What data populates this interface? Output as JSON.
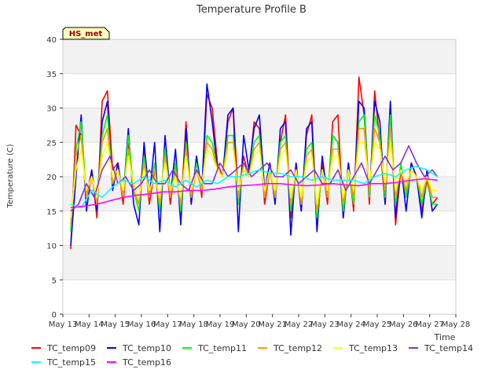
{
  "chart_data": {
    "type": "line",
    "title": "Temperature Profile B",
    "xlabel": "Time",
    "ylabel": "Temperature (C)",
    "xlim": [
      "May 13",
      "May 28"
    ],
    "ylim": [
      0,
      40
    ],
    "yticks": [
      0,
      5,
      10,
      15,
      20,
      25,
      30,
      35,
      40
    ],
    "xticks": [
      "May 13",
      "May 14",
      "May 15",
      "May 16",
      "May 17",
      "May 18",
      "May 19",
      "May 20",
      "May 21",
      "May 22",
      "May 23",
      "May 24",
      "May 25",
      "May 26",
      "May 27",
      "May 28"
    ],
    "grid": "horizontal bands",
    "legend_position": "bottom",
    "annotation": "HS_met",
    "series": [
      {
        "name": "TC_temp09",
        "color": "#ff0000",
        "x": [
          13.3,
          13.5,
          13.7,
          13.9,
          14.1,
          14.3,
          14.5,
          14.7,
          14.9,
          15.1,
          15.3,
          15.5,
          15.7,
          15.9,
          16.1,
          16.3,
          16.5,
          16.7,
          16.9,
          17.1,
          17.3,
          17.5,
          17.7,
          17.9,
          18.1,
          18.3,
          18.5,
          18.7,
          18.9,
          19.1,
          19.3,
          19.5,
          19.7,
          19.9,
          20.1,
          20.3,
          20.5,
          20.7,
          20.9,
          21.1,
          21.3,
          21.5,
          21.7,
          21.9,
          22.1,
          22.3,
          22.5,
          22.7,
          22.9,
          23.1,
          23.3,
          23.5,
          23.7,
          23.9,
          24.1,
          24.3,
          24.5,
          24.7,
          24.9,
          25.1,
          25.3,
          25.5,
          25.7,
          25.9,
          26.1,
          26.3,
          26.5,
          26.7,
          26.9,
          27.1,
          27.3
        ],
        "y": [
          9.5,
          27.5,
          26,
          17,
          21,
          14,
          31,
          32.5,
          21,
          22,
          16,
          25,
          18,
          16,
          24,
          16,
          21,
          15,
          24,
          16,
          22,
          15,
          28,
          16,
          23,
          17,
          32,
          30,
          22,
          20,
          28,
          30,
          17,
          23,
          20,
          28,
          27,
          16,
          21,
          17,
          25,
          29,
          14,
          22,
          15,
          26,
          29,
          13,
          22,
          16,
          28,
          29,
          14,
          22,
          15,
          34.5,
          29,
          16,
          32.5,
          25,
          16,
          30,
          13,
          21,
          17,
          22,
          20,
          15,
          19.5,
          16,
          17
        ]
      },
      {
        "name": "TC_temp10",
        "color": "#0000ff",
        "x": [
          13.3,
          13.5,
          13.7,
          13.9,
          14.1,
          14.3,
          14.5,
          14.7,
          14.9,
          15.1,
          15.3,
          15.5,
          15.7,
          15.9,
          16.1,
          16.3,
          16.5,
          16.7,
          16.9,
          17.1,
          17.3,
          17.5,
          17.7,
          17.9,
          18.1,
          18.3,
          18.5,
          18.7,
          18.9,
          19.1,
          19.3,
          19.5,
          19.7,
          19.9,
          20.1,
          20.3,
          20.5,
          20.7,
          20.9,
          21.1,
          21.3,
          21.5,
          21.7,
          21.9,
          22.1,
          22.3,
          22.5,
          22.7,
          22.9,
          23.1,
          23.3,
          23.5,
          23.7,
          23.9,
          24.1,
          24.3,
          24.5,
          24.7,
          24.9,
          25.1,
          25.3,
          25.5,
          25.7,
          25.9,
          26.1,
          26.3,
          26.5,
          26.7,
          26.9,
          27.1,
          27.3
        ],
        "y": [
          10,
          20,
          29,
          15,
          21,
          15,
          28,
          31,
          18,
          22,
          17,
          27,
          16,
          13,
          25,
          17,
          25,
          12,
          26,
          17,
          24,
          13,
          27,
          16,
          23,
          18,
          33.5,
          28,
          21,
          20,
          29,
          30,
          12,
          26,
          21,
          27,
          29,
          18,
          22,
          16,
          27,
          28,
          11.5,
          22,
          15,
          27,
          28,
          12,
          23,
          17,
          26,
          25,
          14,
          22,
          16,
          31,
          30,
          17,
          31,
          28,
          16,
          31,
          14,
          22,
          15,
          22,
          20,
          14,
          21,
          15,
          16
        ]
      },
      {
        "name": "TC_temp11",
        "color": "#00ff00",
        "x": [
          13.3,
          13.5,
          13.7,
          13.9,
          14.1,
          14.3,
          14.5,
          14.7,
          14.9,
          15.1,
          15.3,
          15.5,
          15.7,
          15.9,
          16.1,
          16.3,
          16.5,
          16.7,
          16.9,
          17.1,
          17.3,
          17.5,
          17.7,
          17.9,
          18.1,
          18.3,
          18.5,
          18.7,
          18.9,
          19.1,
          19.3,
          19.5,
          19.7,
          19.9,
          20.1,
          20.3,
          20.5,
          20.7,
          20.9,
          21.1,
          21.3,
          21.5,
          21.7,
          21.9,
          22.1,
          22.3,
          22.5,
          22.7,
          22.9,
          23.1,
          23.3,
          23.5,
          23.7,
          23.9,
          24.1,
          24.3,
          24.5,
          24.7,
          24.9,
          25.1,
          25.3,
          25.5,
          25.7,
          25.9,
          26.1,
          26.3,
          26.5,
          26.7,
          26.9,
          27.1,
          27.3
        ],
        "y": [
          12,
          24,
          28,
          17,
          20,
          16,
          26,
          29,
          19,
          21,
          17,
          26,
          18,
          15,
          23,
          17,
          22,
          15,
          24,
          17,
          22,
          15,
          25,
          17,
          22,
          18,
          26,
          25,
          21,
          20,
          26,
          26,
          16,
          22,
          20,
          25,
          26,
          17,
          21,
          17,
          25,
          26,
          15,
          21,
          16,
          24,
          25,
          14,
          21,
          17,
          26,
          25,
          15,
          21,
          16,
          28,
          29,
          17,
          29,
          26,
          17,
          29,
          16,
          22,
          17,
          21,
          20,
          16,
          20,
          16,
          16
        ]
      },
      {
        "name": "TC_temp12",
        "color": "#ff9900",
        "x": [
          13.3,
          13.5,
          13.7,
          13.9,
          14.1,
          14.3,
          14.5,
          14.7,
          14.9,
          15.1,
          15.3,
          15.5,
          15.7,
          15.9,
          16.1,
          16.3,
          16.5,
          16.7,
          16.9,
          17.1,
          17.3,
          17.5,
          17.7,
          17.9,
          18.1,
          18.3,
          18.5,
          18.7,
          18.9,
          19.1,
          19.3,
          19.5,
          19.7,
          19.9,
          20.1,
          20.3,
          20.5,
          20.7,
          20.9,
          21.1,
          21.3,
          21.5,
          21.7,
          21.9,
          22.1,
          22.3,
          22.5,
          22.7,
          22.9,
          23.1,
          23.3,
          23.5,
          23.7,
          23.9,
          24.1,
          24.3,
          24.5,
          24.7,
          24.9,
          25.1,
          25.3,
          25.5,
          25.7,
          25.9,
          26.1,
          26.3,
          26.5,
          26.7,
          26.9,
          27.1,
          27.3
        ],
        "y": [
          13,
          23,
          26,
          17,
          20,
          16,
          25,
          27,
          19,
          21,
          17,
          24,
          18,
          16,
          22,
          17,
          21,
          16,
          23,
          17,
          21,
          16,
          24,
          17,
          21,
          18,
          25,
          24,
          21,
          20,
          25,
          25,
          17,
          22,
          20,
          24,
          25,
          17,
          21,
          17,
          24,
          25,
          16,
          21,
          16,
          23,
          24,
          15,
          21,
          17,
          24,
          24,
          16,
          21,
          17,
          27,
          27,
          18,
          27,
          25,
          18,
          27,
          17,
          21,
          18,
          21,
          20,
          17,
          20,
          17,
          17
        ]
      },
      {
        "name": "TC_temp13",
        "color": "#ffff00",
        "x": [
          13.3,
          13.5,
          13.7,
          13.9,
          14.1,
          14.3,
          14.5,
          14.7,
          14.9,
          15.1,
          15.3,
          15.5,
          15.7,
          15.9,
          16.1,
          16.3,
          16.5,
          16.7,
          16.9,
          17.1,
          17.3,
          17.5,
          17.7,
          17.9,
          18.1,
          18.3,
          18.5,
          18.7,
          18.9,
          19.1,
          19.3,
          19.5,
          19.7,
          19.9,
          20.1,
          20.3,
          20.5,
          20.7,
          20.9,
          21.1,
          21.3,
          21.5,
          21.7,
          21.9,
          22.1,
          22.3,
          22.5,
          22.7,
          22.9,
          23.1,
          23.3,
          23.5,
          23.7,
          23.9,
          24.1,
          24.3,
          24.5,
          24.7,
          24.9,
          25.1,
          25.3,
          25.5,
          25.7,
          25.9,
          26.1,
          26.3,
          26.5,
          26.7,
          26.9,
          27.1,
          27.3
        ],
        "y": [
          14,
          21,
          24,
          18,
          20,
          17,
          23,
          25,
          20,
          21,
          18,
          23,
          19,
          17,
          21,
          18,
          20,
          17,
          22,
          18,
          20,
          17,
          23,
          18,
          21,
          19,
          24,
          23,
          21,
          20,
          24,
          24,
          18,
          21,
          20,
          23,
          24,
          18,
          21,
          18,
          23,
          24,
          17,
          21,
          17,
          22,
          23,
          16,
          21,
          18,
          23,
          23,
          17,
          21,
          18,
          25,
          25,
          19,
          25,
          24,
          19,
          25,
          18,
          21,
          19,
          21,
          20,
          18,
          20,
          18,
          18
        ]
      },
      {
        "name": "TC_temp14",
        "color": "#8a2be2",
        "x": [
          13.3,
          13.6,
          13.9,
          14.2,
          14.5,
          14.8,
          15.1,
          15.4,
          15.7,
          16.0,
          16.3,
          16.6,
          16.9,
          17.2,
          17.5,
          17.8,
          18.1,
          18.4,
          18.7,
          19.0,
          19.3,
          19.6,
          19.9,
          20.2,
          20.5,
          20.8,
          21.1,
          21.4,
          21.7,
          22.0,
          22.3,
          22.6,
          22.9,
          23.2,
          23.5,
          23.8,
          24.1,
          24.4,
          24.7,
          25.0,
          25.3,
          25.6,
          25.9,
          26.2,
          26.5,
          26.8,
          27.1,
          27.3
        ],
        "y": [
          15,
          16,
          19,
          17,
          21,
          23,
          19,
          20,
          18,
          19,
          21,
          19,
          19,
          21,
          19,
          18,
          21,
          19,
          19,
          22,
          20,
          21,
          22,
          20,
          21,
          22,
          20,
          20,
          21,
          19,
          20,
          21,
          19,
          19,
          21,
          18,
          20,
          22,
          19,
          21,
          23,
          21,
          22,
          24.5,
          22,
          20,
          21,
          20
        ]
      },
      {
        "name": "TC_temp15",
        "color": "#00ffff",
        "x": [
          13.3,
          13.7,
          14.1,
          14.5,
          14.9,
          15.3,
          15.7,
          16.1,
          16.5,
          16.9,
          17.3,
          17.7,
          18.1,
          18.5,
          18.9,
          19.3,
          19.7,
          20.1,
          20.5,
          20.9,
          21.3,
          21.7,
          22.1,
          22.5,
          22.9,
          23.3,
          23.7,
          24.1,
          24.5,
          24.9,
          25.3,
          25.7,
          26.1,
          26.5,
          26.9,
          27.3
        ],
        "y": [
          16,
          15.5,
          18,
          17,
          18.5,
          19.5,
          19,
          20,
          19,
          19.5,
          18.5,
          19.5,
          18.5,
          19.5,
          19,
          20,
          20,
          20.5,
          21,
          20.5,
          20.5,
          20,
          20,
          19.5,
          20,
          19.5,
          19.5,
          19.5,
          19,
          20,
          20.5,
          20,
          21,
          21.5,
          21,
          20
        ]
      },
      {
        "name": "TC_temp16",
        "color": "#ff00ff",
        "x": [
          13.3,
          13.8,
          14.3,
          14.8,
          15.3,
          15.8,
          16.3,
          16.8,
          17.3,
          17.8,
          18.3,
          18.8,
          19.3,
          19.8,
          20.3,
          20.8,
          21.3,
          21.8,
          22.3,
          22.8,
          23.3,
          23.8,
          24.3,
          24.8,
          25.3,
          25.8,
          26.3,
          26.8,
          27.3
        ],
        "y": [
          15.5,
          15.7,
          16,
          16.5,
          17,
          17.3,
          17.5,
          17.8,
          17.8,
          18,
          18,
          18.2,
          18.5,
          18.7,
          18.8,
          19,
          19,
          18.8,
          18.7,
          18.8,
          19,
          18.8,
          18.7,
          19,
          19,
          19.2,
          19.5,
          19.7,
          19.5
        ]
      }
    ]
  }
}
